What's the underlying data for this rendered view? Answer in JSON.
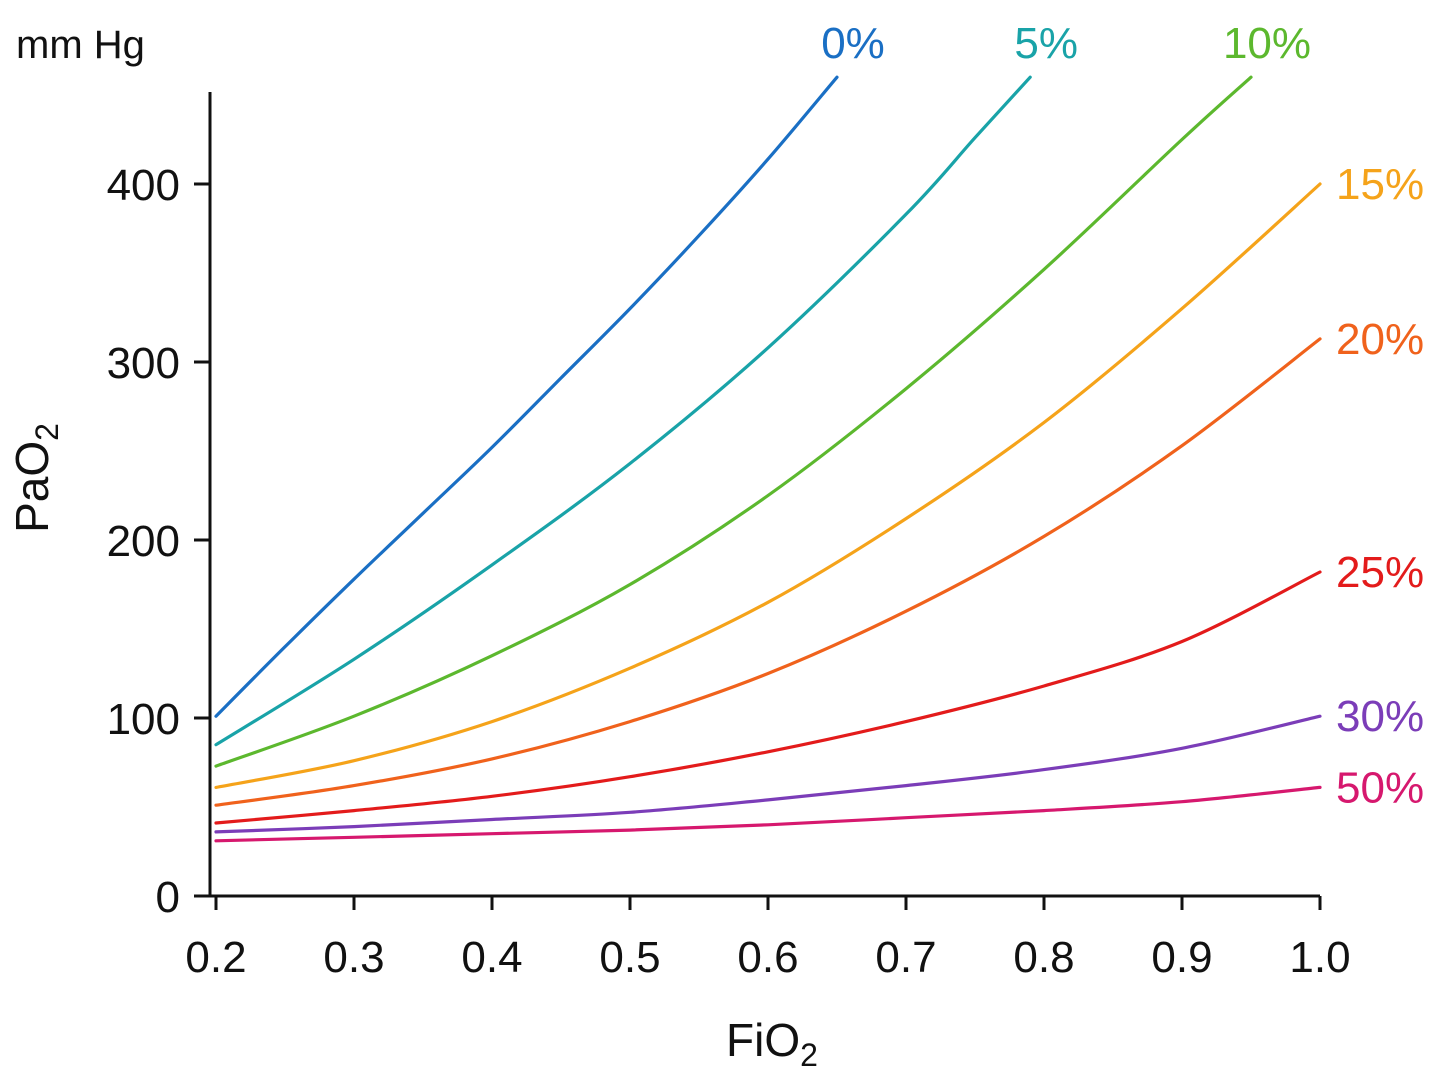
{
  "chart_data": {
    "type": "line",
    "unit_label": "mm Hg",
    "ylabel_main": "PaO",
    "ylabel_sub": "2",
    "xlabel_main": "FiO",
    "xlabel_sub": "2",
    "xlim": [
      0.2,
      1.0
    ],
    "ylim": [
      0,
      450
    ],
    "x_ticks": [
      0.2,
      0.3,
      0.4,
      0.5,
      0.6,
      0.7,
      0.8,
      0.9,
      1.0
    ],
    "x_tick_labels": [
      "0.2",
      "0.3",
      "0.4",
      "0.5",
      "0.6",
      "0.7",
      "0.8",
      "0.9",
      "1.0"
    ],
    "y_ticks": [
      0,
      100,
      200,
      300,
      400
    ],
    "y_tick_labels": [
      "0",
      "100",
      "200",
      "300",
      "400"
    ],
    "grid": false,
    "legend": "inline labels at line ends",
    "series": [
      {
        "name": "0%",
        "color": "#1a6fc4",
        "label_placement": "top",
        "x": [
          0.2,
          0.25,
          0.3,
          0.35,
          0.4,
          0.45,
          0.5,
          0.55,
          0.6,
          0.65
        ],
        "y": [
          101,
          140,
          178,
          215,
          252,
          291,
          330,
          371,
          414,
          460
        ]
      },
      {
        "name": "5%",
        "color": "#19a3a8",
        "label_placement": "top",
        "x": [
          0.2,
          0.3,
          0.4,
          0.5,
          0.6,
          0.7,
          0.75,
          0.79
        ],
        "y": [
          85,
          133,
          186,
          243,
          308,
          383,
          426,
          460
        ]
      },
      {
        "name": "10%",
        "color": "#5cb82e",
        "label_placement": "top",
        "x": [
          0.2,
          0.3,
          0.4,
          0.5,
          0.6,
          0.7,
          0.8,
          0.9,
          0.95
        ],
        "y": [
          73,
          101,
          135,
          175,
          225,
          285,
          352,
          425,
          460
        ]
      },
      {
        "name": "15%",
        "color": "#f5a31a",
        "label_placement": "right",
        "x": [
          0.2,
          0.3,
          0.4,
          0.5,
          0.6,
          0.7,
          0.8,
          0.9,
          1.0
        ],
        "y": [
          61,
          76,
          98,
          128,
          165,
          212,
          266,
          330,
          400
        ]
      },
      {
        "name": "20%",
        "color": "#f0621c",
        "label_placement": "right",
        "x": [
          0.2,
          0.3,
          0.4,
          0.5,
          0.6,
          0.7,
          0.8,
          0.9,
          1.0
        ],
        "y": [
          51,
          62,
          77,
          98,
          125,
          160,
          202,
          253,
          313
        ]
      },
      {
        "name": "25%",
        "color": "#e31b1b",
        "label_placement": "right",
        "x": [
          0.2,
          0.3,
          0.4,
          0.5,
          0.6,
          0.7,
          0.8,
          0.9,
          1.0
        ],
        "y": [
          41,
          48,
          56,
          67,
          81,
          98,
          118,
          143,
          182
        ]
      },
      {
        "name": "30%",
        "color": "#7b3db8",
        "label_placement": "right",
        "x": [
          0.2,
          0.3,
          0.4,
          0.5,
          0.6,
          0.7,
          0.8,
          0.9,
          1.0
        ],
        "y": [
          36,
          39,
          43,
          47,
          54,
          62,
          71,
          83,
          101
        ]
      },
      {
        "name": "50%",
        "color": "#d6186e",
        "label_placement": "right",
        "x": [
          0.2,
          0.3,
          0.4,
          0.5,
          0.6,
          0.7,
          0.8,
          0.9,
          1.0
        ],
        "y": [
          31,
          33,
          35,
          37,
          40,
          44,
          48,
          53,
          61
        ]
      }
    ]
  }
}
